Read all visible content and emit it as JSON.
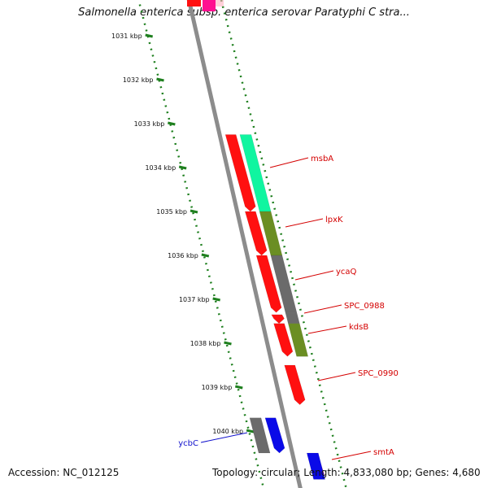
{
  "title": "Salmonella enterica subsp. enterica serovar Paratyphi C stra...",
  "accession_text": "Accession: NC_012125",
  "summary_text": "Topology: circular; Length: 4,833,080 bp; Genes: 4,680",
  "colors": {
    "tick": "#1e7f1e",
    "backbone": "#8c8c8c",
    "label_red": "#d40000",
    "label_blue": "#1010cc",
    "cds_red": "#ff1010",
    "cds_green": "#10f5a0",
    "cds_olive": "#6b8e23",
    "cds_gray": "#6b6b6b",
    "cds_blue": "#0a0ae8"
  },
  "ruler": [
    {
      "kbp": 1031,
      "label": "1031 kbp"
    },
    {
      "kbp": 1032,
      "label": "1032 kbp"
    },
    {
      "kbp": 1033,
      "label": "1033 kbp"
    },
    {
      "kbp": 1034,
      "label": "1034 kbp"
    },
    {
      "kbp": 1035,
      "label": "1035 kbp"
    },
    {
      "kbp": 1036,
      "label": "1036 kbp"
    },
    {
      "kbp": 1037,
      "label": "1037 kbp"
    },
    {
      "kbp": 1038,
      "label": "1038 kbp"
    },
    {
      "kbp": 1039,
      "label": "1039 kbp"
    },
    {
      "kbp": 1040,
      "label": "1040 kbp"
    }
  ],
  "genes": [
    {
      "name": "msbA",
      "start_kbp": 1033.25,
      "end_kbp": 1035.0,
      "strand": "+",
      "color": "cds_green"
    },
    {
      "name": "lpxK",
      "start_kbp": 1035.0,
      "end_kbp": 1036.0,
      "strand": "+",
      "color": "cds_olive"
    },
    {
      "name": "ycaQ",
      "start_kbp": 1036.0,
      "end_kbp": 1037.3,
      "strand": "+",
      "color": "cds_gray"
    },
    {
      "name": "SPC_0988",
      "start_kbp": 1037.3,
      "end_kbp": 1037.55,
      "strand": "+",
      "color": "cds_gray"
    },
    {
      "name": "kdsB",
      "start_kbp": 1037.55,
      "end_kbp": 1038.3,
      "strand": "+",
      "color": "cds_olive"
    },
    {
      "name": "SPC_0990",
      "start_kbp": 1038.5,
      "end_kbp": 1039.4,
      "strand": "-",
      "color": "cds_red"
    },
    {
      "name": "ycbC",
      "start_kbp": 1039.7,
      "end_kbp": 1040.5,
      "strand": "+",
      "color": "cds_blue"
    },
    {
      "name": "smtA",
      "start_kbp": 1040.5,
      "end_kbp": 1041.1,
      "strand": "+",
      "color": "cds_blue"
    }
  ],
  "labels": [
    {
      "text": "msbA",
      "gene": "msbA",
      "color": "label_red"
    },
    {
      "text": "lpxK",
      "gene": "lpxK",
      "color": "label_red"
    },
    {
      "text": "ycaQ",
      "gene": "ycaQ",
      "color": "label_red"
    },
    {
      "text": "SPC_0988",
      "gene": "SPC_0988",
      "color": "label_red"
    },
    {
      "text": "kdsB",
      "gene": "kdsB",
      "color": "label_red"
    },
    {
      "text": "SPC_0990",
      "gene": "SPC_0990",
      "color": "label_red"
    },
    {
      "text": "ycbC",
      "gene": "ycbC",
      "color": "label_blue"
    },
    {
      "text": "smtA",
      "gene": "smtA",
      "color": "label_red"
    }
  ]
}
